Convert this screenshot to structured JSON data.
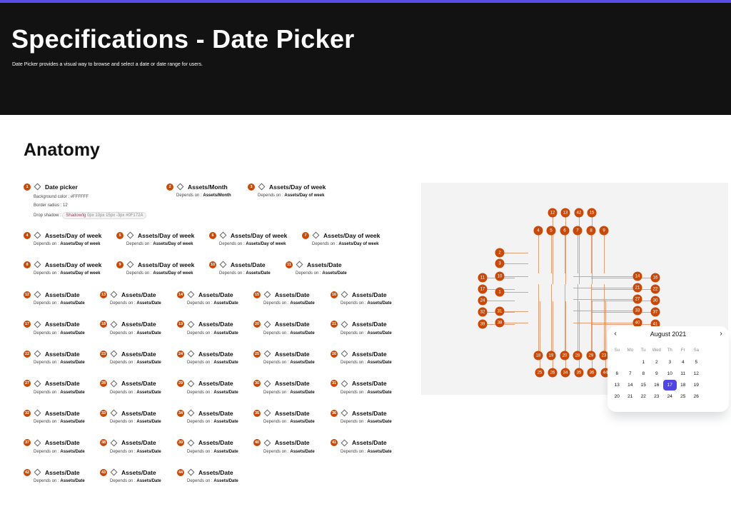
{
  "header": {
    "title": "Specifications - Date Picker",
    "subtitle": "Date Picker provides a visual way to browse and select a date or date range for users.",
    "accent": "#5b4ee6"
  },
  "section": {
    "title": "Anatomy"
  },
  "depends_label": "Depends on :",
  "items": [
    {
      "n": "1",
      "title": "Date picker",
      "props": [
        {
          "label": "Background color :",
          "value": "#FFFFFF"
        },
        {
          "label": "Border radius :",
          "value": "12"
        },
        {
          "label": "Drop shadow :",
          "token": "Shadow/lg",
          "value": "0px 10px 15px -3px #0F172A"
        }
      ]
    },
    {
      "n": "2",
      "title": "Assets/Month",
      "depends": "Assets/Month"
    },
    {
      "n": "3",
      "title": "Assets/Day of week",
      "depends": "Assets/Day of week"
    },
    {
      "n": "4",
      "title": "Assets/Day of week",
      "depends": "Assets/Day of week"
    },
    {
      "n": "5",
      "title": "Assets/Day of week",
      "depends": "Assets/Day of week"
    },
    {
      "n": "6",
      "title": "Assets/Day of week",
      "depends": "Assets/Day of week"
    },
    {
      "n": "7",
      "title": "Assets/Day of week",
      "depends": "Assets/Day of week"
    },
    {
      "n": "8",
      "title": "Assets/Day of week",
      "depends": "Assets/Day of week"
    },
    {
      "n": "9",
      "title": "Assets/Day of week",
      "depends": "Assets/Day of week"
    },
    {
      "n": "10",
      "title": "Assets/Date",
      "depends": "Assets/Date"
    },
    {
      "n": "11",
      "title": "Assets/Date",
      "depends": "Assets/Date"
    },
    {
      "n": "12",
      "title": "Assets/Date",
      "depends": "Assets/Date"
    },
    {
      "n": "13",
      "title": "Assets/Date",
      "depends": "Assets/Date"
    },
    {
      "n": "14",
      "title": "Assets/Date",
      "depends": "Assets/Date"
    },
    {
      "n": "15",
      "title": "Assets/Date",
      "depends": "Assets/Date"
    },
    {
      "n": "16",
      "title": "Assets/Date",
      "depends": "Assets/Date"
    },
    {
      "n": "17",
      "title": "Assets/Date",
      "depends": "Assets/Date"
    },
    {
      "n": "18",
      "title": "Assets/Date",
      "depends": "Assets/Date"
    },
    {
      "n": "19",
      "title": "Assets/Date",
      "depends": "Assets/Date"
    },
    {
      "n": "20",
      "title": "Assets/Date",
      "depends": "Assets/Date"
    },
    {
      "n": "21",
      "title": "Assets/Date",
      "depends": "Assets/Date"
    },
    {
      "n": "22",
      "title": "Assets/Date",
      "depends": "Assets/Date"
    },
    {
      "n": "23",
      "title": "Assets/Date",
      "depends": "Assets/Date"
    },
    {
      "n": "24",
      "title": "Assets/Date",
      "depends": "Assets/Date"
    },
    {
      "n": "25",
      "title": "Assets/Date",
      "depends": "Assets/Date"
    },
    {
      "n": "26",
      "title": "Assets/Date",
      "depends": "Assets/Date"
    },
    {
      "n": "27",
      "title": "Assets/Date",
      "depends": "Assets/Date"
    },
    {
      "n": "28",
      "title": "Assets/Date",
      "depends": "Assets/Date"
    },
    {
      "n": "29",
      "title": "Assets/Date",
      "depends": "Assets/Date"
    },
    {
      "n": "30",
      "title": "Assets/Date",
      "depends": "Assets/Date"
    },
    {
      "n": "31",
      "title": "Assets/Date",
      "depends": "Assets/Date"
    },
    {
      "n": "32",
      "title": "Assets/Date",
      "depends": "Assets/Date"
    },
    {
      "n": "33",
      "title": "Assets/Date",
      "depends": "Assets/Date"
    },
    {
      "n": "34",
      "title": "Assets/Date",
      "depends": "Assets/Date"
    },
    {
      "n": "35",
      "title": "Assets/Date",
      "depends": "Assets/Date"
    },
    {
      "n": "36",
      "title": "Assets/Date",
      "depends": "Assets/Date"
    },
    {
      "n": "37",
      "title": "Assets/Date",
      "depends": "Assets/Date"
    },
    {
      "n": "38",
      "title": "Assets/Date",
      "depends": "Assets/Date"
    },
    {
      "n": "39",
      "title": "Assets/Date",
      "depends": "Assets/Date"
    },
    {
      "n": "40",
      "title": "Assets/Date",
      "depends": "Assets/Date"
    },
    {
      "n": "41",
      "title": "Assets/Date",
      "depends": "Assets/Date"
    },
    {
      "n": "42",
      "title": "Assets/Date",
      "depends": "Assets/Date"
    },
    {
      "n": "43",
      "title": "Assets/Date",
      "depends": "Assets/Date"
    },
    {
      "n": "44",
      "title": "Assets/Date",
      "depends": "Assets/Date"
    }
  ],
  "badge_color": "#C94A08",
  "calendar": {
    "month": "August 2021",
    "prev_icon": "chevron-left-icon",
    "next_icon": "chevron-right-icon",
    "weekdays": [
      "Su",
      "Mo",
      "Tu",
      "Wed",
      "Th",
      "Fr",
      "Sa"
    ],
    "days": [
      "",
      "",
      "1",
      "2",
      "3",
      "4",
      "5",
      "6",
      "7",
      "8",
      "9",
      "10",
      "11",
      "12",
      "13",
      "14",
      "15",
      "16",
      "17",
      "18",
      "19",
      "20",
      "21",
      "22",
      "23",
      "24",
      "25",
      "26"
    ],
    "selected": "17",
    "selected_color": "#4F46E5"
  }
}
